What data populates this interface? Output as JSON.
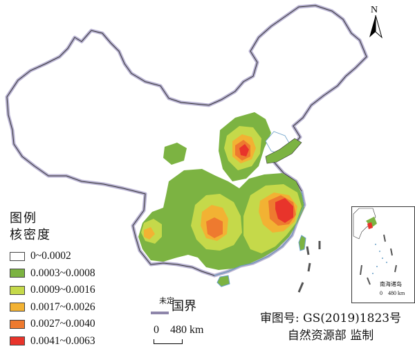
{
  "legend": {
    "title": "图例",
    "subtitle": "核密度",
    "items": [
      {
        "label": "0~0.0002",
        "color": "#ffffff"
      },
      {
        "label": "0.0003~0.0008",
        "color": "#7cb342"
      },
      {
        "label": "0.0009~0.0016",
        "color": "#c5d94a"
      },
      {
        "label": "0.0017~0.0026",
        "color": "#f2b233"
      },
      {
        "label": "0.0027~0.0040",
        "color": "#ee7a2f"
      },
      {
        "label": "0.0041~0.0063",
        "color": "#e8342b"
      }
    ]
  },
  "boundary": {
    "undetermined": "未定",
    "label": "国界"
  },
  "scalebar": {
    "label": "0    480 km"
  },
  "approval": {
    "line1": "审图号: GS(2019)1823号",
    "line2": "自然资源部 监制"
  },
  "compass": {
    "label": "N"
  },
  "inset": {
    "title": "南海诸岛",
    "scale": "0    480 km"
  }
}
